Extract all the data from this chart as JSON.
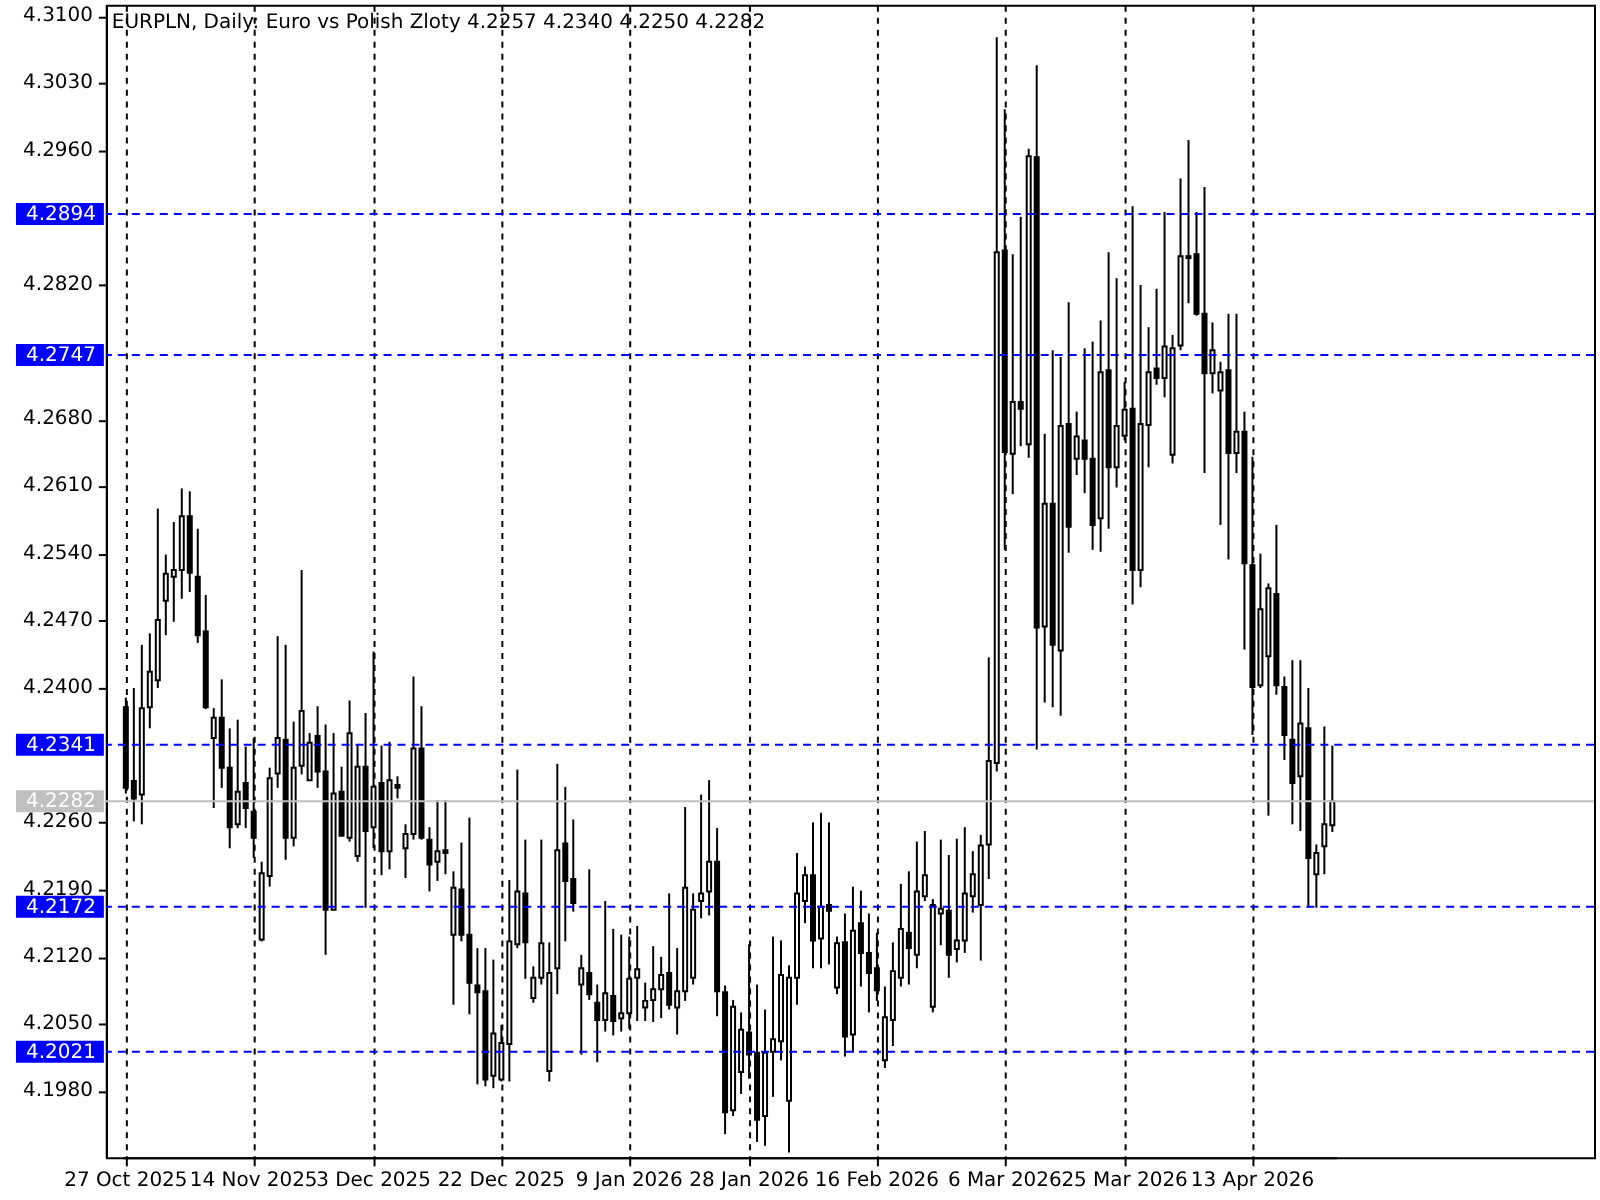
{
  "chart_data": {
    "type": "candlestick",
    "title": "EURPLN, Daily: Euro vs Polish Zloty 4.2257 4.2340 4.2250 4.2282",
    "categories": [
      "27 Oct 2025",
      null,
      null,
      null,
      null,
      null,
      null,
      null,
      null,
      null,
      null,
      null,
      null,
      null,
      null,
      null,
      "14 Nov 2025",
      null,
      null,
      null,
      null,
      null,
      null,
      null,
      null,
      null,
      null,
      null,
      null,
      null,
      null,
      "3 Dec 2025",
      null,
      null,
      null,
      null,
      null,
      null,
      null,
      null,
      null,
      null,
      null,
      null,
      null,
      null,
      null,
      "22 Dec 2025",
      null,
      null,
      null,
      null,
      null,
      null,
      null,
      null,
      null,
      null,
      null,
      null,
      null,
      null,
      null,
      "9 Jan 2026",
      null,
      null,
      null,
      null,
      null,
      null,
      null,
      null,
      null,
      null,
      null,
      null,
      null,
      null,
      "28 Jan 2026",
      null,
      null,
      null,
      null,
      null,
      null,
      null,
      null,
      null,
      null,
      null,
      null,
      null,
      null,
      null,
      "16 Feb 2026",
      null,
      null,
      null,
      null,
      null,
      null,
      null,
      null,
      null,
      null,
      null,
      null,
      null,
      null,
      null,
      "6 Mar 2026",
      null,
      null,
      null,
      null,
      null,
      null,
      null,
      null,
      null,
      null,
      null,
      null,
      null,
      null,
      "25 Mar 2026",
      null,
      null,
      null,
      null,
      null,
      null,
      null,
      null,
      null,
      null,
      null,
      null,
      null,
      null,
      null,
      "13 Apr 2026",
      null,
      null,
      null,
      null,
      null,
      null,
      null,
      null,
      null,
      null
    ],
    "ohlc": [
      [
        4.238,
        4.239,
        4.229,
        4.2296
      ],
      [
        4.2303,
        4.24,
        4.2261,
        4.2285
      ],
      [
        4.2289,
        4.2445,
        4.2258,
        4.2379
      ],
      [
        4.238,
        4.2457,
        4.2358,
        4.2417
      ],
      [
        4.2408,
        4.2587,
        4.24,
        4.2471
      ],
      [
        4.2491,
        4.2539,
        4.2455,
        4.2519
      ],
      [
        4.2516,
        4.2573,
        4.2469,
        4.2523
      ],
      [
        4.2523,
        4.2608,
        4.2493,
        4.2579
      ],
      [
        4.2579,
        4.2605,
        4.25,
        4.252
      ],
      [
        4.2516,
        4.2566,
        4.2447,
        4.2455
      ],
      [
        4.2459,
        4.2497,
        4.2378,
        4.238
      ],
      [
        4.2348,
        4.2379,
        4.2275,
        4.2369
      ],
      [
        4.2369,
        4.2409,
        4.2296,
        4.2317
      ],
      [
        4.2317,
        4.2358,
        4.2233,
        4.2255
      ],
      [
        4.2258,
        4.2367,
        4.2254,
        4.2292
      ],
      [
        4.2301,
        4.2339,
        4.2254,
        4.2275
      ],
      [
        4.2271,
        4.2348,
        4.2223,
        4.2244
      ],
      [
        4.2138,
        4.2219,
        4.2136,
        4.2207
      ],
      [
        4.2204,
        4.2317,
        4.2193,
        4.2306
      ],
      [
        4.2311,
        4.2454,
        4.2296,
        4.2348
      ],
      [
        4.2346,
        4.2445,
        4.2221,
        4.2244
      ],
      [
        4.2244,
        4.2365,
        4.2235,
        4.2317
      ],
      [
        4.2319,
        4.2523,
        4.231,
        4.2376
      ],
      [
        4.2304,
        4.2353,
        4.2304,
        4.2343
      ],
      [
        4.235,
        4.2381,
        4.2296,
        4.2313
      ],
      [
        4.2313,
        4.2362,
        4.2122,
        4.2169
      ],
      [
        4.2169,
        4.2353,
        4.2169,
        4.229
      ],
      [
        4.2292,
        4.2318,
        4.2246,
        4.2246
      ],
      [
        4.2244,
        4.2387,
        4.224,
        4.2353
      ],
      [
        4.2225,
        4.2341,
        4.2219,
        4.2318
      ],
      [
        4.2318,
        4.2374,
        4.2171,
        4.2251
      ],
      [
        4.2255,
        4.2438,
        4.2233,
        4.2297
      ],
      [
        4.2301,
        4.234,
        4.2205,
        4.223
      ],
      [
        4.223,
        4.2344,
        4.2211,
        4.2304
      ],
      [
        4.2299,
        4.2308,
        4.2285,
        4.2296
      ],
      [
        4.2233,
        4.2258,
        4.2202,
        4.2248
      ],
      [
        4.2248,
        4.2412,
        4.2242,
        4.2337
      ],
      [
        4.2337,
        4.2381,
        4.2242,
        4.2244
      ],
      [
        4.2242,
        4.2255,
        4.2188,
        4.2216
      ],
      [
        4.2219,
        4.2283,
        4.2199,
        4.223
      ],
      [
        4.2231,
        4.2283,
        4.2206,
        4.2228
      ],
      [
        4.2143,
        4.2209,
        4.207,
        4.2192
      ],
      [
        4.219,
        4.2239,
        4.2136,
        4.2143
      ],
      [
        4.2143,
        4.2265,
        4.206,
        4.2093
      ],
      [
        4.209,
        4.2129,
        4.1987,
        4.2083
      ],
      [
        4.2084,
        4.2129,
        4.1985,
        4.1992
      ],
      [
        4.1996,
        4.2117,
        4.1983,
        4.204
      ],
      [
        4.1992,
        4.2049,
        4.199,
        4.203
      ],
      [
        4.2029,
        4.22,
        4.199,
        4.2136
      ],
      [
        4.2133,
        4.2315,
        4.2129,
        4.2188
      ],
      [
        4.2186,
        4.2242,
        4.2097,
        4.2135
      ],
      [
        4.2077,
        4.211,
        4.2072,
        4.2098
      ],
      [
        4.2098,
        4.2242,
        4.2091,
        4.2134
      ],
      [
        4.2001,
        4.2135,
        4.199,
        4.2103
      ],
      [
        4.2108,
        4.2321,
        4.2081,
        4.2231
      ],
      [
        4.2238,
        4.2297,
        4.2136,
        4.2199
      ],
      [
        4.2201,
        4.2263,
        4.2167,
        4.2176
      ],
      [
        4.2091,
        4.2122,
        4.2018,
        4.2108
      ],
      [
        4.2103,
        4.2211,
        4.2075,
        4.2081
      ],
      [
        4.2072,
        4.2091,
        4.201,
        4.2054
      ],
      [
        4.2054,
        4.2178,
        4.2042,
        4.2082
      ],
      [
        4.2079,
        4.2149,
        4.2038,
        4.2053
      ],
      [
        4.2056,
        4.2143,
        4.2042,
        4.2061
      ],
      [
        4.2061,
        4.2141,
        4.2045,
        4.2097
      ],
      [
        4.2098,
        4.2152,
        4.2053,
        4.2107
      ],
      [
        4.2067,
        4.2093,
        4.2053,
        4.2074
      ],
      [
        4.2075,
        4.2131,
        4.2052,
        4.2086
      ],
      [
        4.2086,
        4.212,
        4.2056,
        4.2101
      ],
      [
        4.2103,
        4.2186,
        4.2065,
        4.207
      ],
      [
        4.2067,
        4.2129,
        4.2039,
        4.2084
      ],
      [
        4.2084,
        4.2276,
        4.2074,
        4.2192
      ],
      [
        4.2098,
        4.2186,
        4.2091,
        4.2169
      ],
      [
        4.2178,
        4.2289,
        4.216,
        4.2186
      ],
      [
        4.2188,
        4.2304,
        4.2163,
        4.2219
      ],
      [
        4.2219,
        4.2254,
        4.2058,
        4.2084
      ],
      [
        4.2083,
        4.209,
        4.1935,
        4.1958
      ],
      [
        4.196,
        4.2075,
        4.1954,
        4.2068
      ],
      [
        4.2,
        4.2062,
        4.1977,
        4.2044
      ],
      [
        4.2041,
        4.2133,
        4.1993,
        4.2018
      ],
      [
        4.202,
        4.2091,
        4.1927,
        4.195
      ],
      [
        4.1954,
        4.2065,
        4.1923,
        4.202
      ],
      [
        4.2021,
        4.2141,
        4.1974,
        4.2034
      ],
      [
        4.2032,
        4.2137,
        4.2012,
        4.2101
      ],
      [
        4.197,
        4.2111,
        4.1916,
        4.2098
      ],
      [
        4.2098,
        4.2228,
        4.207,
        4.2186
      ],
      [
        4.2178,
        4.2214,
        4.2155,
        4.2205
      ],
      [
        4.2205,
        4.226,
        4.2108,
        4.2137
      ],
      [
        4.2139,
        4.227,
        4.2108,
        4.2172
      ],
      [
        4.2174,
        4.226,
        4.2112,
        4.2168
      ],
      [
        4.2088,
        4.2141,
        4.2081,
        4.2134
      ],
      [
        4.2135,
        4.2165,
        4.2016,
        4.2037
      ],
      [
        4.2039,
        4.2193,
        4.202,
        4.2147
      ],
      [
        4.2155,
        4.2189,
        4.2089,
        4.2124
      ],
      [
        4.2124,
        4.2165,
        4.2062,
        4.2103
      ],
      [
        4.2108,
        4.2145,
        4.2074,
        4.2085
      ],
      [
        4.2012,
        4.2089,
        4.2004,
        4.2057
      ],
      [
        4.2054,
        4.2135,
        4.2027,
        4.2105
      ],
      [
        4.2098,
        4.2196,
        4.2089,
        4.2149
      ],
      [
        4.2145,
        4.2209,
        4.2091,
        4.2129
      ],
      [
        4.2122,
        4.224,
        4.2108,
        4.2188
      ],
      [
        4.2183,
        4.2251,
        4.2178,
        4.2205
      ],
      [
        4.2068,
        4.218,
        4.2062,
        4.2174
      ],
      [
        4.2165,
        4.2242,
        4.2132,
        4.217
      ],
      [
        4.2168,
        4.2226,
        4.2098,
        4.2122
      ],
      [
        4.2128,
        4.2243,
        4.2114,
        4.2137
      ],
      [
        4.2137,
        4.2255,
        4.2124,
        4.2186
      ],
      [
        4.2183,
        4.223,
        4.2166,
        4.2206
      ],
      [
        4.2174,
        4.2247,
        4.2116,
        4.2236
      ],
      [
        4.2237,
        4.2432,
        4.2201,
        4.2324
      ],
      [
        4.2322,
        4.3078,
        4.2313,
        4.2854
      ],
      [
        4.2856,
        4.3003,
        4.2544,
        4.2646
      ],
      [
        4.2644,
        4.2852,
        4.2602,
        4.2698
      ],
      [
        4.2698,
        4.2891,
        4.2652,
        4.2691
      ],
      [
        4.2654,
        4.2962,
        4.264,
        4.2954
      ],
      [
        4.2953,
        4.3049,
        4.2336,
        4.2463
      ],
      [
        4.2464,
        4.2665,
        4.2385,
        4.2592
      ],
      [
        4.2592,
        4.2752,
        4.238,
        4.2445
      ],
      [
        4.2439,
        4.2745,
        4.2371,
        4.2673
      ],
      [
        4.2675,
        4.2802,
        4.2541,
        4.2568
      ],
      [
        4.2639,
        4.2688,
        4.2622,
        4.2662
      ],
      [
        4.2658,
        4.2754,
        4.2603,
        4.2639
      ],
      [
        4.2639,
        4.2761,
        4.2544,
        4.257
      ],
      [
        4.2577,
        4.2783,
        4.2542,
        4.2729
      ],
      [
        4.2731,
        4.2854,
        4.2566,
        4.263
      ],
      [
        4.263,
        4.2827,
        4.2609,
        4.2673
      ],
      [
        4.2663,
        4.2719,
        4.2658,
        4.269
      ],
      [
        4.2691,
        4.2902,
        4.2487,
        4.2523
      ],
      [
        4.2523,
        4.282,
        4.2505,
        4.2675
      ],
      [
        4.2674,
        4.2776,
        4.263,
        4.2729
      ],
      [
        4.2733,
        4.2816,
        4.2716,
        4.2723
      ],
      [
        4.2723,
        4.2896,
        4.2703,
        4.2756
      ],
      [
        4.2643,
        4.2768,
        4.2634,
        4.2754
      ],
      [
        4.2757,
        4.2931,
        4.2752,
        4.285
      ],
      [
        4.2848,
        4.2971,
        4.2801,
        4.285
      ],
      [
        4.2852,
        4.2896,
        4.2788,
        4.279
      ],
      [
        4.279,
        4.2922,
        4.2624,
        4.2728
      ],
      [
        4.2728,
        4.2781,
        4.2707,
        4.2752
      ],
      [
        4.271,
        4.274,
        4.257,
        4.2729
      ],
      [
        4.2731,
        4.279,
        4.2534,
        4.2645
      ],
      [
        4.2645,
        4.279,
        4.2624,
        4.2667
      ],
      [
        4.2667,
        4.2688,
        4.244,
        4.253
      ],
      [
        4.2528,
        4.2641,
        4.2351,
        4.2401
      ],
      [
        4.2403,
        4.254,
        4.24,
        4.2482
      ],
      [
        4.2433,
        4.2509,
        4.2267,
        4.2504
      ],
      [
        4.2498,
        4.257,
        4.2393,
        4.2403
      ],
      [
        4.2401,
        4.2412,
        4.2325,
        4.2351
      ],
      [
        4.2346,
        4.2429,
        4.2258,
        4.2301
      ],
      [
        4.2308,
        4.2429,
        4.2251,
        4.2363
      ],
      [
        4.2358,
        4.24,
        4.2171,
        4.2223
      ],
      [
        4.2206,
        4.2237,
        4.2171,
        4.2228
      ],
      [
        4.2235,
        4.236,
        4.2206,
        4.2258
      ],
      [
        4.2257,
        4.234,
        4.225,
        4.2282
      ]
    ],
    "color": "#000000",
    "ylim": [
      4.1911,
      4.3112
    ],
    "yticks": [
      {
        "value": 4.198,
        "label": "4.1980"
      },
      {
        "value": 4.205,
        "label": "4.2050"
      },
      {
        "value": 4.212,
        "label": "4.2120"
      },
      {
        "value": 4.219,
        "label": "4.2190"
      },
      {
        "value": 4.226,
        "label": "4.2260"
      },
      {
        "value": 4.24,
        "label": "4.2400"
      },
      {
        "value": 4.247,
        "label": "4.2470"
      },
      {
        "value": 4.254,
        "label": "4.2540"
      },
      {
        "value": 4.261,
        "label": "4.2610"
      },
      {
        "value": 4.268,
        "label": "4.2680"
      },
      {
        "value": 4.282,
        "label": "4.2820"
      },
      {
        "value": 4.296,
        "label": "4.2960"
      },
      {
        "value": 4.303,
        "label": "4.3030"
      },
      {
        "value": 4.31,
        "label": "4.3100"
      }
    ],
    "grid": "x",
    "ref_lines": [
      {
        "axis": "y",
        "value": 4.2894,
        "label": "4.2894",
        "color": "#0000ff",
        "line_style": "dashed"
      },
      {
        "axis": "y",
        "value": 4.2747,
        "label": "4.2747",
        "color": "#0000ff",
        "line_style": "dashed"
      },
      {
        "axis": "y",
        "value": 4.2341,
        "label": "4.2341",
        "color": "#0000ff",
        "line_style": "dashed"
      },
      {
        "axis": "y",
        "value": 4.2282,
        "label": "4.2282",
        "color": "#c0c0c0",
        "line_style": "solid"
      },
      {
        "axis": "y",
        "value": 4.2172,
        "label": "4.2172",
        "color": "#0000ff",
        "line_style": "dashed"
      },
      {
        "axis": "y",
        "value": 4.2021,
        "label": "4.2021",
        "color": "#0000ff",
        "line_style": "dashed"
      }
    ]
  }
}
